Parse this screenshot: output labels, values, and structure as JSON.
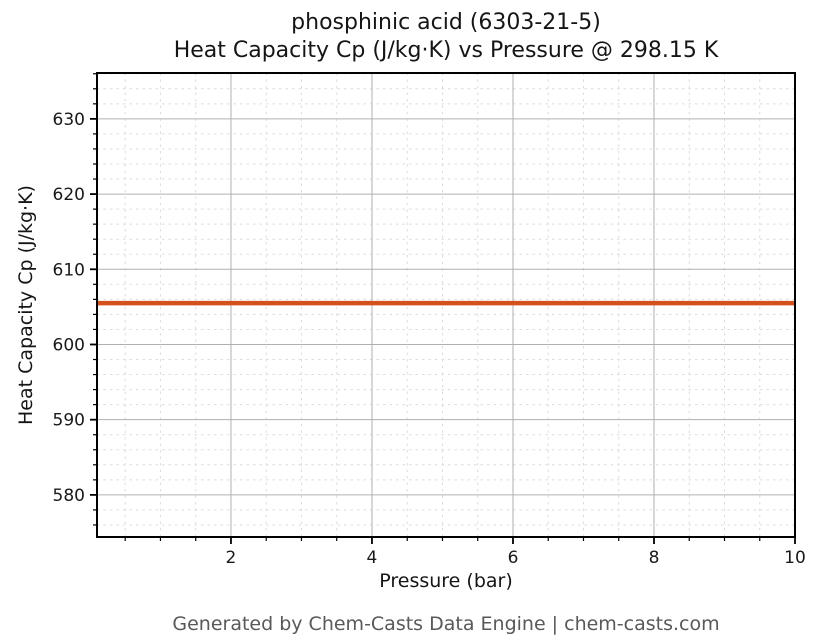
{
  "figure": {
    "title_line1": "phosphinic acid (6303-21-5)",
    "title_line2": "Heat Capacity Cp (J/kg·K) vs Pressure @ 298.15 K",
    "footer": "Generated by Chem-Casts Data Engine | chem-casts.com"
  },
  "chart_data": {
    "type": "line",
    "title": "phosphinic acid (6303-21-5)",
    "subtitle": "Heat Capacity Cp (J/kg·K) vs Pressure @ 298.15 K",
    "xlabel": "Pressure (bar)",
    "ylabel": "Heat Capacity Cp (J/kg·K)",
    "xlim": [
      0.1,
      10
    ],
    "ylim": [
      574.4,
      636.1
    ],
    "x_ticks": [
      2,
      4,
      6,
      8,
      10
    ],
    "y_ticks": [
      580,
      590,
      600,
      610,
      620,
      630
    ],
    "x_minor_step": 0.5,
    "y_minor_step": 2,
    "grid": {
      "major": true,
      "minor": true
    },
    "legend_position": "none",
    "series": [
      {
        "name": "Heat Capacity Cp",
        "color": "#d4511e",
        "line_width": 4.5,
        "x": [
          0.1,
          10
        ],
        "y": [
          605.5,
          605.5
        ]
      }
    ]
  },
  "colors": {
    "background": "#ffffff",
    "spine": "#000000",
    "grid_major": "#b0b0b0",
    "grid_minor": "#dcdcdc",
    "tick_label": "#191919",
    "title_text": "#151515",
    "footer_text": "#595959",
    "series_line": "#d4511e"
  }
}
